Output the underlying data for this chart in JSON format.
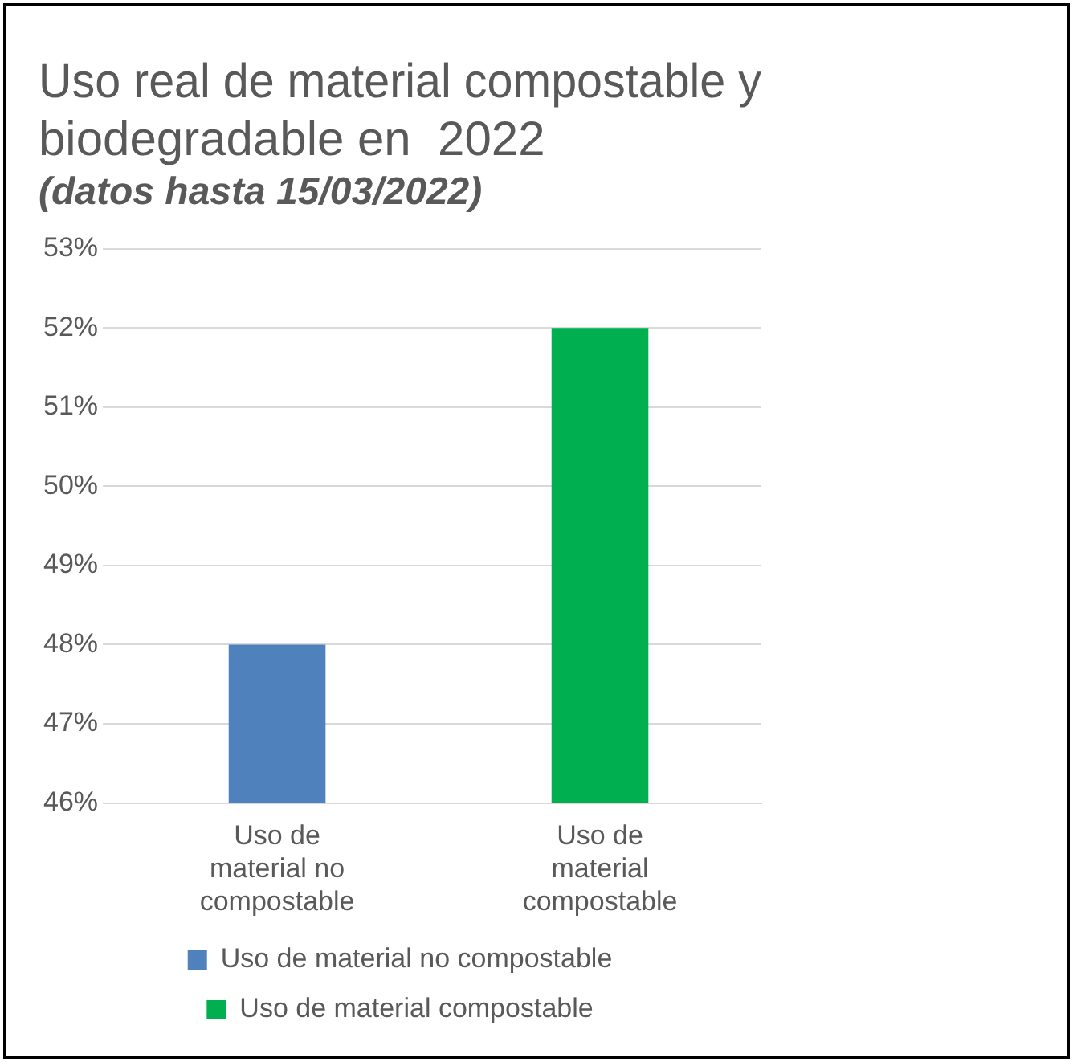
{
  "chart_data": {
    "type": "bar",
    "title": "Uso real de material compostable y biodegradable en  2022",
    "subtitle": "(datos hasta 15/03/2022)",
    "categories": [
      "Uso de material no compostable",
      "Uso de material compostable"
    ],
    "series": [
      {
        "name": "Uso de material no compostable",
        "color": "#4f81bd",
        "values": [
          48,
          null
        ]
      },
      {
        "name": "Uso de material compostable",
        "color": "#00b050",
        "values": [
          null,
          52
        ]
      }
    ],
    "ylim": [
      46,
      53
    ],
    "yticks": [
      {
        "value": 46,
        "label": "46%"
      },
      {
        "value": 47,
        "label": "47%"
      },
      {
        "value": 48,
        "label": "48%"
      },
      {
        "value": 49,
        "label": "49%"
      },
      {
        "value": 50,
        "label": "50%"
      },
      {
        "value": 51,
        "label": "51%"
      },
      {
        "value": 52,
        "label": "52%"
      },
      {
        "value": 53,
        "label": "53%"
      }
    ],
    "grid": "y",
    "legend": "bottom"
  }
}
